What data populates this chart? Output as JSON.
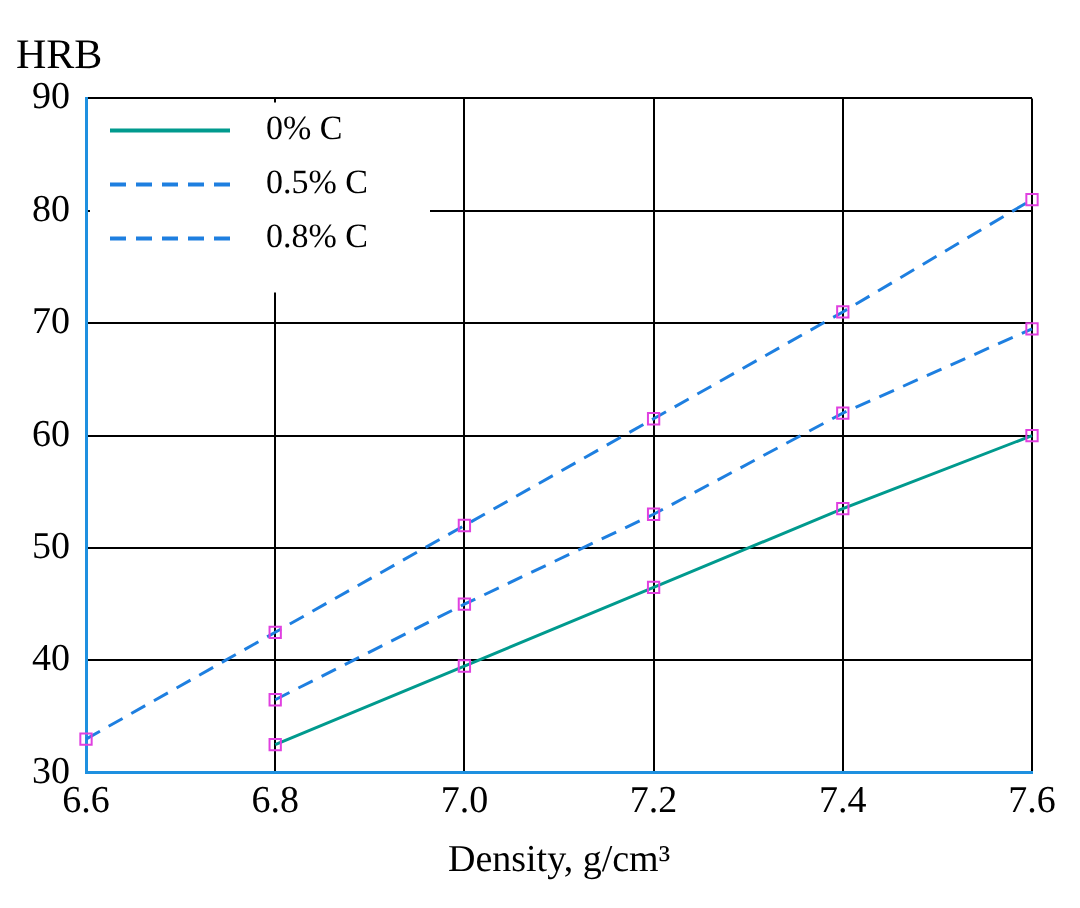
{
  "chart_data": {
    "type": "line",
    "ylabel": "HRB",
    "xlabel": "Density, g/cm³",
    "xlim": [
      6.6,
      7.6
    ],
    "xticks": [
      {
        "value": 6.6,
        "label": "6.6"
      },
      {
        "value": 6.8,
        "label": "6.8"
      },
      {
        "value": 7.0,
        "label": "7.0"
      },
      {
        "value": 7.2,
        "label": "7.2"
      },
      {
        "value": 7.4,
        "label": "7.4"
      },
      {
        "value": 7.6,
        "label": "7.6"
      }
    ],
    "ylim": [
      30,
      90
    ],
    "yticks": [
      30,
      40,
      50,
      60,
      70,
      80,
      90
    ],
    "series": [
      {
        "name": "0% C",
        "color": "#009a8e",
        "line_style": "solid",
        "x": [
          6.8,
          7.0,
          7.2,
          7.4,
          7.6
        ],
        "values": [
          32.5,
          39.5,
          46.5,
          53.5,
          60
        ]
      },
      {
        "name": "0.5% C",
        "color": "#1e7fe0",
        "line_style": "dashed",
        "x": [
          6.8,
          7.0,
          7.2,
          7.4,
          7.6
        ],
        "values": [
          36.5,
          45,
          53,
          62,
          69.5
        ]
      },
      {
        "name": "0.8% C",
        "color": "#1e7fe0",
        "line_style": "dashed",
        "x": [
          6.6,
          6.8,
          7.0,
          7.2,
          7.4,
          7.6
        ],
        "values": [
          33,
          42.5,
          52,
          61.5,
          71,
          81
        ]
      }
    ],
    "marker": "square",
    "grid": true,
    "legend": "top left"
  }
}
